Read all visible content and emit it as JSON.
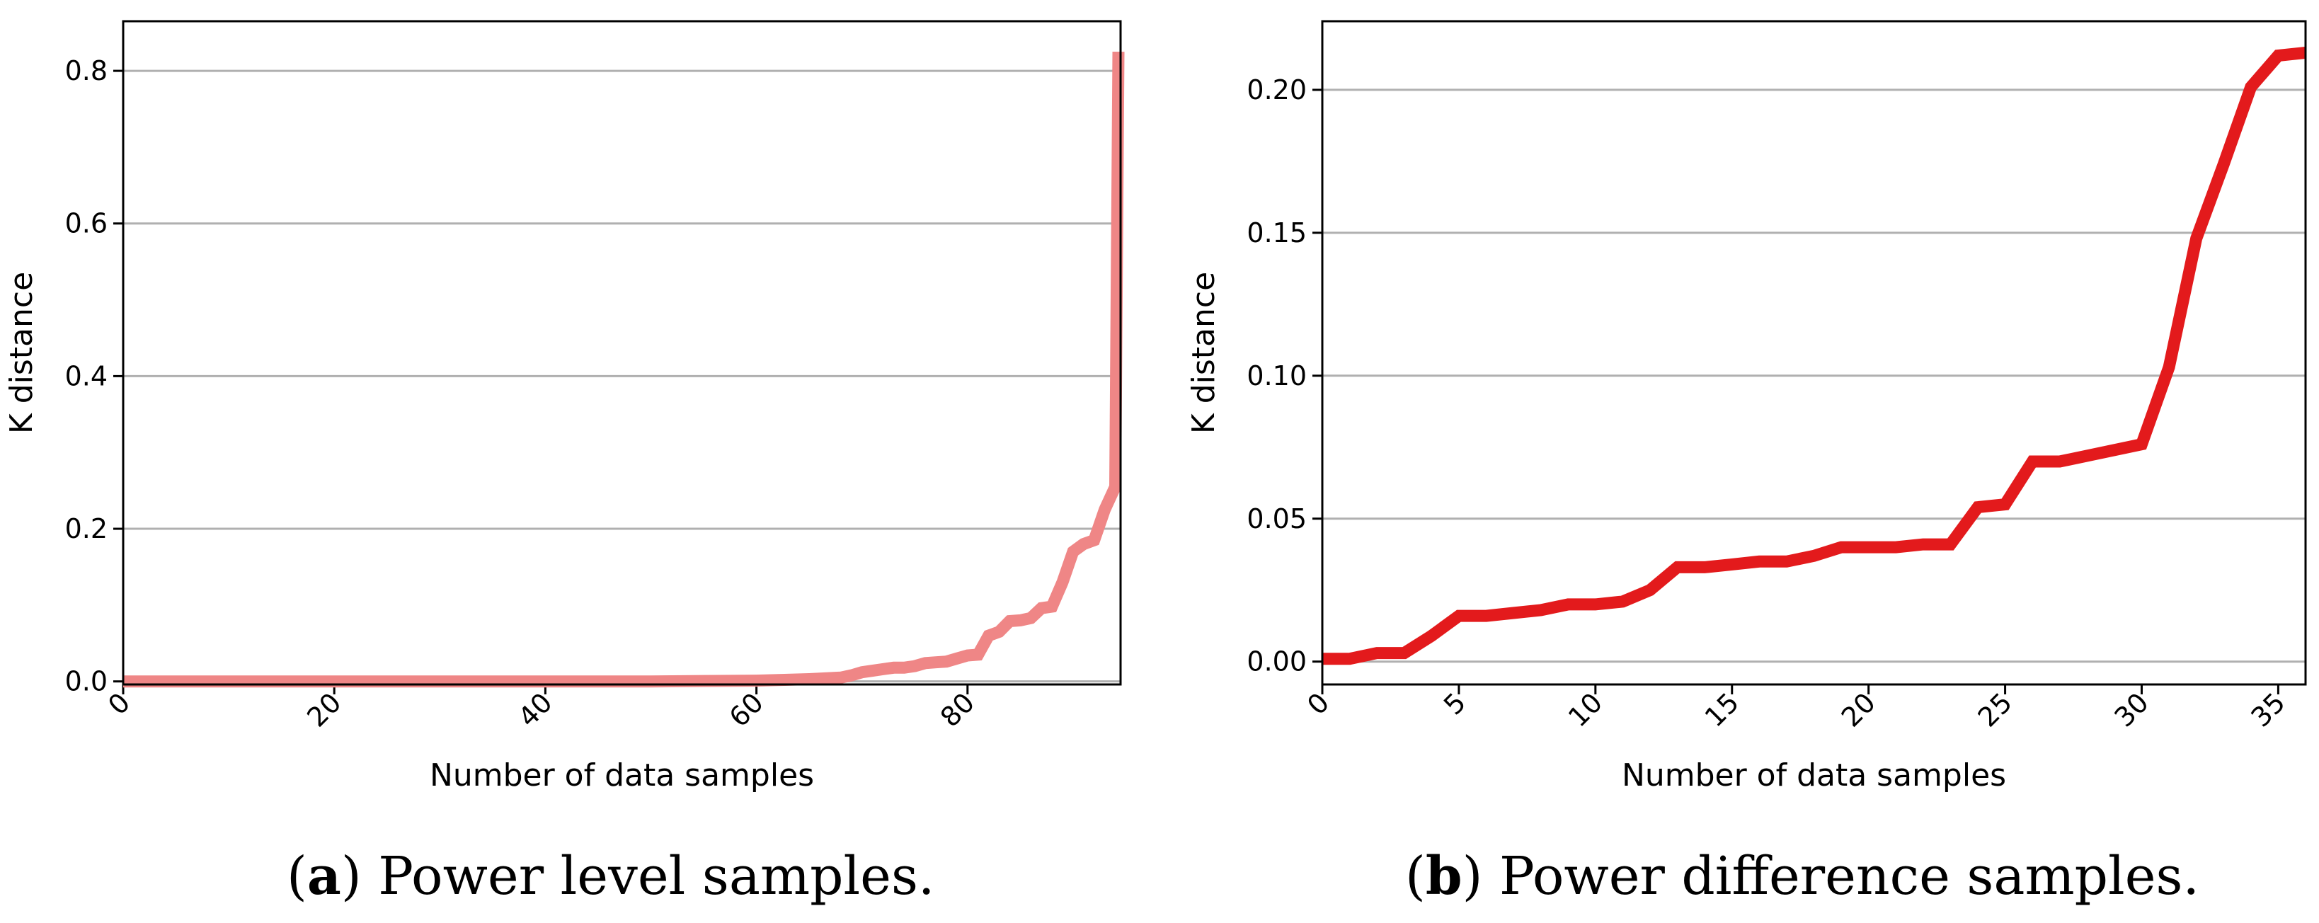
{
  "chart_data": [
    {
      "id": "a",
      "type": "line",
      "title": "",
      "xlabel": "Number of data samples",
      "ylabel": "K distance",
      "xlim": [
        0,
        94.5
      ],
      "ylim": [
        -0.004,
        0.865
      ],
      "xticks": [
        0,
        20,
        40,
        60,
        80
      ],
      "xtick_labels": [
        "0",
        "20",
        "40",
        "60",
        "80"
      ],
      "yticks": [
        0.0,
        0.2,
        0.4,
        0.6,
        0.8
      ],
      "ytick_labels": [
        "0.0",
        "0.2",
        "0.4",
        "0.6",
        "0.8"
      ],
      "grid": "y",
      "line_color": "#ef8686",
      "series": [
        {
          "name": "Power level samples",
          "x": [
            0,
            10,
            20,
            30,
            40,
            50,
            55,
            60,
            65,
            68,
            69,
            70,
            71,
            72,
            73,
            74,
            75,
            76,
            77,
            78,
            79,
            80,
            81,
            82,
            83,
            84,
            85,
            86,
            87,
            88,
            89,
            90,
            91,
            92,
            93,
            94,
            94.3
          ],
          "y": [
            0.0,
            0.0,
            0.0,
            0.0,
            0.0,
            0.0,
            0.0005,
            0.001,
            0.003,
            0.005,
            0.008,
            0.012,
            0.014,
            0.016,
            0.018,
            0.018,
            0.02,
            0.024,
            0.025,
            0.026,
            0.03,
            0.034,
            0.035,
            0.06,
            0.065,
            0.079,
            0.08,
            0.083,
            0.096,
            0.098,
            0.13,
            0.17,
            0.18,
            0.185,
            0.225,
            0.255,
            0.825
          ]
        }
      ]
    },
    {
      "id": "b",
      "type": "line",
      "title": "",
      "xlabel": "Number of data samples",
      "ylabel": "K distance",
      "xlim": [
        0,
        36
      ],
      "ylim": [
        -0.008,
        0.224
      ],
      "xticks": [
        0,
        5,
        10,
        15,
        20,
        25,
        30,
        35
      ],
      "xtick_labels": [
        "0",
        "5",
        "10",
        "15",
        "20",
        "25",
        "30",
        "35"
      ],
      "yticks": [
        0.0,
        0.05,
        0.1,
        0.15,
        0.2
      ],
      "ytick_labels": [
        "0.00",
        "0.05",
        "0.10",
        "0.15",
        "0.20"
      ],
      "grid": "y",
      "line_color": "#e31a1c",
      "series": [
        {
          "name": "Power difference samples",
          "x": [
            0,
            1,
            2,
            3,
            4,
            5,
            6,
            7,
            8,
            9,
            10,
            11,
            12,
            13,
            14,
            15,
            16,
            17,
            18,
            19,
            20,
            21,
            22,
            23,
            24,
            25,
            26,
            27,
            28,
            29,
            30,
            31,
            32,
            33,
            34,
            35,
            36
          ],
          "y": [
            0.001,
            0.001,
            0.003,
            0.003,
            0.009,
            0.016,
            0.016,
            0.017,
            0.018,
            0.02,
            0.02,
            0.021,
            0.025,
            0.033,
            0.033,
            0.034,
            0.035,
            0.035,
            0.037,
            0.04,
            0.04,
            0.04,
            0.041,
            0.041,
            0.054,
            0.055,
            0.07,
            0.07,
            0.072,
            0.074,
            0.076,
            0.103,
            0.148,
            0.174,
            0.201,
            0.212,
            0.213
          ]
        }
      ]
    }
  ],
  "captions": {
    "a": {
      "letter": "a",
      "open": "(",
      "close": ") ",
      "text": "Power level samples."
    },
    "b": {
      "letter": "b",
      "open": "(",
      "close": ") ",
      "text": "Power difference samples."
    }
  }
}
